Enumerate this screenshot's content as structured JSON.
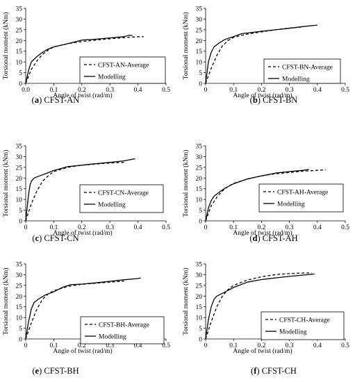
{
  "chart_data": [
    {
      "id": "a",
      "type": "line",
      "caption_letter": "a",
      "caption_name": "CFST-AN",
      "xlabel": "Angle of twist  (rad/m)",
      "ylabel": "Torsional  moment  (kNm)",
      "xlim": [
        0,
        0.5
      ],
      "ylim": [
        0,
        35
      ],
      "xticks": [
        "0.0",
        "0.1",
        "0.2",
        "0.3",
        "0.4",
        "0.5"
      ],
      "yticks": [
        "0",
        "5",
        "10",
        "15",
        "20",
        "25",
        "30",
        "35"
      ],
      "legend_position": "center-right",
      "series": [
        {
          "name": "CFST-AN-Average",
          "style": "dashed",
          "x": [
            0,
            0.02,
            0.04,
            0.06,
            0.08,
            0.1,
            0.15,
            0.2,
            0.25,
            0.3,
            0.35,
            0.38,
            0.42
          ],
          "y": [
            0,
            6.5,
            10.5,
            13.5,
            15.5,
            17,
            18.5,
            19.5,
            20.2,
            20.8,
            21.3,
            21.6,
            21.8
          ]
        },
        {
          "name": "Modelling",
          "style": "solid",
          "x": [
            0,
            0.01,
            0.02,
            0.04,
            0.06,
            0.08,
            0.1,
            0.15,
            0.2,
            0.25,
            0.3,
            0.35,
            0.37,
            0.38
          ],
          "y": [
            0,
            6,
            10,
            12.5,
            14.5,
            16,
            17,
            18.5,
            20.2,
            20.6,
            21.2,
            21.8,
            22.5,
            22.3
          ]
        }
      ]
    },
    {
      "id": "b",
      "type": "line",
      "caption_letter": "b",
      "caption_name": "CFST-BN",
      "xlabel": "Angle of twist  (rad/m)",
      "ylabel": "Torsional  moment  (kNm)",
      "xlim": [
        0,
        0.5
      ],
      "ylim": [
        0,
        35
      ],
      "xticks": [
        "0",
        "0.1",
        "0.2",
        "0.3",
        "0.4",
        "0.5"
      ],
      "yticks": [
        "0",
        "5",
        "10",
        "15",
        "20",
        "25",
        "30",
        "35"
      ],
      "legend_position": "center-right",
      "series": [
        {
          "name": "CFST-BN-Average",
          "style": "dashed",
          "x": [
            0,
            0.02,
            0.04,
            0.06,
            0.08,
            0.1,
            0.15,
            0.2,
            0.25,
            0.3,
            0.34
          ],
          "y": [
            0,
            7,
            13,
            17.5,
            20,
            21.5,
            23,
            24,
            25,
            25.8,
            26.2
          ]
        },
        {
          "name": "Modelling",
          "style": "solid",
          "x": [
            0,
            0.01,
            0.02,
            0.03,
            0.05,
            0.07,
            0.1,
            0.13,
            0.15,
            0.2,
            0.25,
            0.3,
            0.35,
            0.4
          ],
          "y": [
            0,
            10,
            14.5,
            17,
            19,
            20.5,
            21.8,
            23.2,
            23.5,
            24.3,
            25,
            25.7,
            26.5,
            27.2
          ]
        }
      ]
    },
    {
      "id": "c",
      "type": "line",
      "caption_letter": "c",
      "caption_name": "CFST-CN",
      "xlabel": "Angle of twist  (rad/m)",
      "ylabel": "Torsional  moment  (kNm)",
      "xlim": [
        0,
        0.5
      ],
      "ylim": [
        0,
        35
      ],
      "xticks": [
        "0",
        "0.1",
        "0.2",
        "0.3",
        "0.4",
        "0.5"
      ],
      "yticks": [
        "0",
        "5",
        "10",
        "15",
        "20",
        "25",
        "30",
        "35"
      ],
      "legend_position": "center-right",
      "series": [
        {
          "name": "CFST-CN-Average",
          "style": "dashed",
          "x": [
            0,
            0.02,
            0.04,
            0.06,
            0.08,
            0.1,
            0.15,
            0.2,
            0.25,
            0.3,
            0.35
          ],
          "y": [
            0,
            8,
            14,
            18.5,
            21,
            23,
            25,
            26,
            26.5,
            27,
            27.3
          ]
        },
        {
          "name": "Modelling",
          "style": "solid",
          "x": [
            0,
            0.01,
            0.015,
            0.02,
            0.03,
            0.05,
            0.07,
            0.1,
            0.15,
            0.2,
            0.25,
            0.3,
            0.35,
            0.39
          ],
          "y": [
            0,
            12,
            16.5,
            18.5,
            20,
            21,
            22,
            23.5,
            25.3,
            26,
            26.7,
            27.3,
            28,
            29
          ]
        }
      ]
    },
    {
      "id": "d",
      "type": "line",
      "caption_letter": "d",
      "caption_name": "CFST-AH",
      "xlabel": "Angle of twist  (rad/m)",
      "ylabel": "Torsional  moment  (kNm)",
      "xlim": [
        0,
        0.5
      ],
      "ylim": [
        0,
        35
      ],
      "xticks": [
        "0",
        "0.1",
        "0.2",
        "0.3",
        "0.4",
        "0.5"
      ],
      "yticks": [
        "0",
        "5",
        "10",
        "15",
        "20",
        "25",
        "30",
        "35"
      ],
      "legend_position": "bottom-right",
      "series": [
        {
          "name": "CFST-AH-Average",
          "style": "dashed",
          "x": [
            0,
            0.02,
            0.04,
            0.06,
            0.08,
            0.1,
            0.15,
            0.2,
            0.25,
            0.3,
            0.35,
            0.4,
            0.43
          ],
          "y": [
            0,
            7,
            11,
            14,
            16,
            17.5,
            19.5,
            21,
            22,
            22.6,
            23.2,
            23.6,
            23.8
          ]
        },
        {
          "name": "Modelling",
          "style": "solid",
          "x": [
            0,
            0.01,
            0.02,
            0.03,
            0.05,
            0.07,
            0.1,
            0.15,
            0.2,
            0.25,
            0.3,
            0.35,
            0.37
          ],
          "y": [
            0,
            6,
            9.5,
            11.5,
            13.5,
            15.3,
            17.3,
            19.6,
            21,
            22.3,
            23,
            23.6,
            24
          ]
        }
      ]
    },
    {
      "id": "e",
      "type": "line",
      "caption_letter": "e",
      "caption_name": "CFST-BH",
      "xlabel": "Angle of twist  (rad/m)",
      "ylabel": "Torsional  moment  (kNm)",
      "xlim": [
        0,
        0.5
      ],
      "ylim": [
        0,
        35
      ],
      "xticks": [
        "0",
        "0.1",
        "0.2",
        "0.3",
        "0.4",
        "0.5"
      ],
      "yticks": [
        "0",
        "5",
        "10",
        "15",
        "20",
        "25",
        "30",
        "35"
      ],
      "legend_position": "bottom-right",
      "series": [
        {
          "name": "CFST-BH-Average",
          "style": "dashed",
          "x": [
            0,
            0.02,
            0.04,
            0.06,
            0.08,
            0.1,
            0.15,
            0.2,
            0.25,
            0.3,
            0.35
          ],
          "y": [
            0,
            7.5,
            14,
            18.5,
            21,
            22.5,
            24.5,
            25.5,
            26,
            26.5,
            27
          ]
        },
        {
          "name": "Modelling",
          "style": "solid",
          "x": [
            0,
            0.01,
            0.02,
            0.03,
            0.05,
            0.07,
            0.1,
            0.13,
            0.16,
            0.2,
            0.25,
            0.3,
            0.35,
            0.4,
            0.41
          ],
          "y": [
            0,
            8,
            14,
            17,
            19,
            20.5,
            22,
            24,
            25.3,
            25.6,
            26.2,
            26.9,
            27.6,
            28.2,
            28.5
          ]
        }
      ]
    },
    {
      "id": "f",
      "type": "line",
      "caption_letter": "f",
      "caption_name": "CFST-CH",
      "xlabel": "Angle of twist  (rad/m)",
      "ylabel": "Torsional  moment  (kNm)",
      "xlim": [
        0,
        0.5
      ],
      "ylim": [
        0,
        35
      ],
      "xticks": [
        "0",
        "0.1",
        "0.2",
        "0.3",
        "0.4",
        "0.5"
      ],
      "yticks": [
        "0",
        "5",
        "10",
        "15",
        "20",
        "25",
        "30",
        "35"
      ],
      "legend_position": "bottom-right",
      "series": [
        {
          "name": "CFST-CH-Average",
          "style": "dashed",
          "x": [
            0,
            0.02,
            0.04,
            0.06,
            0.08,
            0.1,
            0.15,
            0.2,
            0.25,
            0.3,
            0.35,
            0.38
          ],
          "y": [
            0,
            8,
            15,
            20,
            23,
            25,
            27.5,
            29,
            30,
            30.5,
            30.8,
            30.8
          ]
        },
        {
          "name": "Modelling",
          "style": "solid",
          "x": [
            0,
            0.01,
            0.02,
            0.03,
            0.04,
            0.06,
            0.1,
            0.15,
            0.2,
            0.25,
            0.3,
            0.35,
            0.39
          ],
          "y": [
            0,
            9,
            15,
            18.5,
            20,
            21.3,
            24,
            26.5,
            27.7,
            28.5,
            29.2,
            29.8,
            30.3
          ]
        }
      ]
    }
  ]
}
